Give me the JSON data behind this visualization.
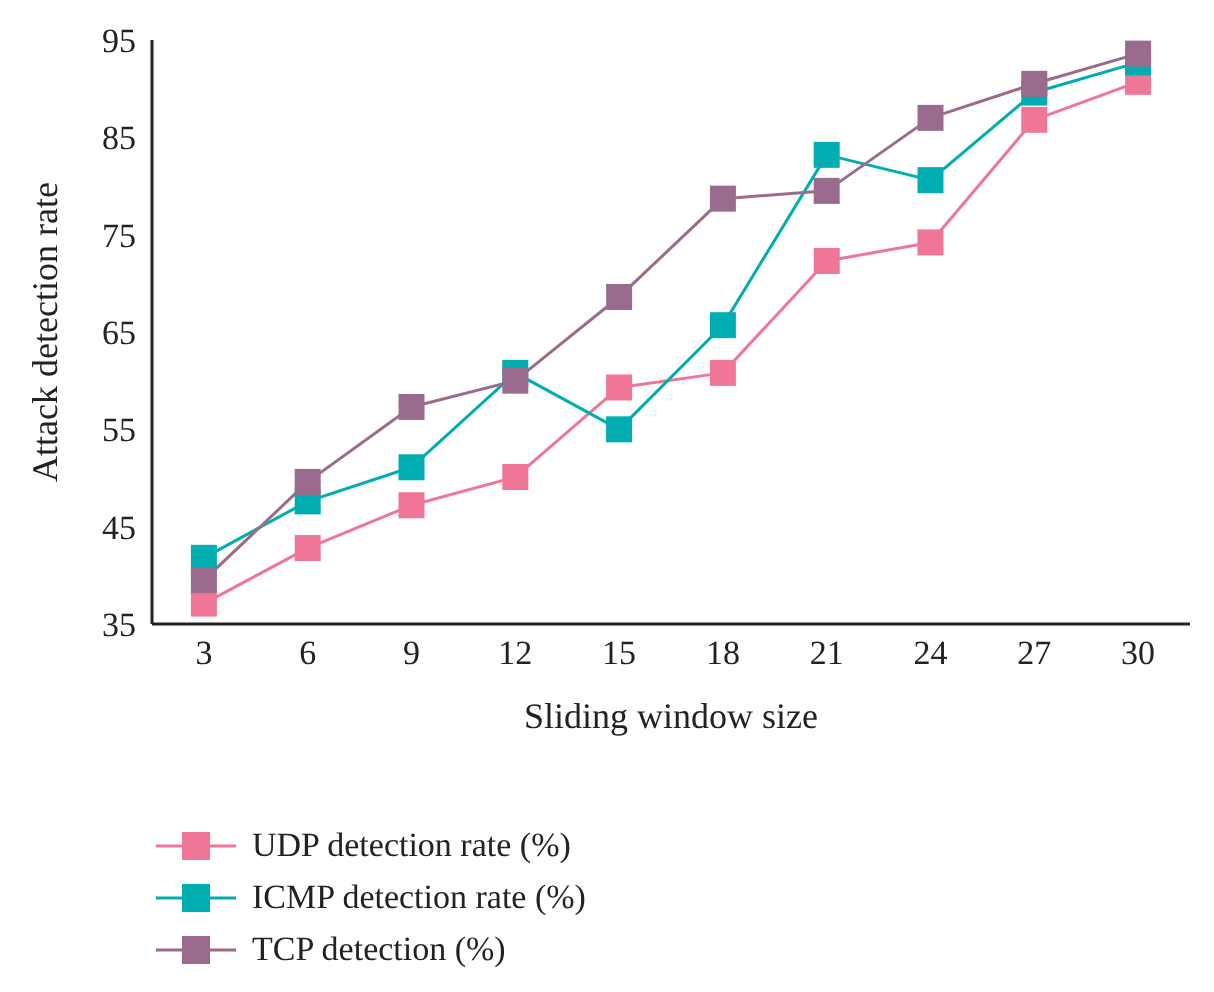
{
  "chart_data": {
    "type": "line",
    "xlabel": "Sliding window size",
    "ylabel": "Attack detection rate",
    "categories": [
      "3",
      "6",
      "9",
      "12",
      "15",
      "18",
      "21",
      "24",
      "27",
      "30"
    ],
    "series": [
      {
        "name": "UDP detection rate (%)",
        "color": "#f07698",
        "values": [
          37.1,
          42.8,
          47.2,
          50.1,
          59.3,
          60.8,
          72.3,
          74.2,
          86.8,
          90.7
        ]
      },
      {
        "name": "ICMP detection rate (%)",
        "color": "#00adb0",
        "values": [
          41.8,
          47.6,
          51.1,
          60.8,
          55,
          65.7,
          83.2,
          80.6,
          89.6,
          92.7
        ]
      },
      {
        "name": "TCP detection (%)",
        "color": "#9b6b8e",
        "values": [
          39.5,
          49.6,
          57.3,
          60,
          68.6,
          78.7,
          79.5,
          87,
          90.5,
          93.6
        ]
      }
    ],
    "ylim": [
      35,
      95
    ],
    "yticks": [
      35,
      45,
      55,
      65,
      75,
      85,
      95
    ],
    "grid": false,
    "legend": "bottom left",
    "marker": "square",
    "line_style": "solid"
  }
}
